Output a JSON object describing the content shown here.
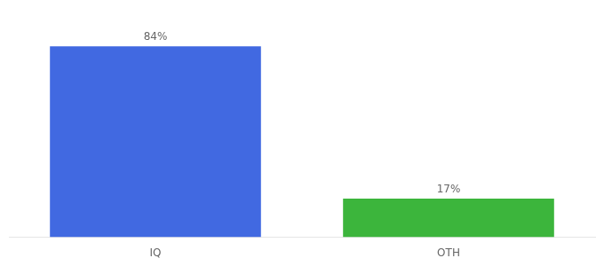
{
  "chart_data": {
    "type": "bar",
    "categories": [
      "IQ",
      "OTH"
    ],
    "values": [
      84,
      17
    ],
    "value_labels": [
      "84%",
      "17%"
    ],
    "data_labels": true,
    "colors": [
      "#4169e1",
      "#3cb53c"
    ],
    "ylim": [
      0,
      95
    ],
    "tick_labels": "x",
    "grid": false
  }
}
